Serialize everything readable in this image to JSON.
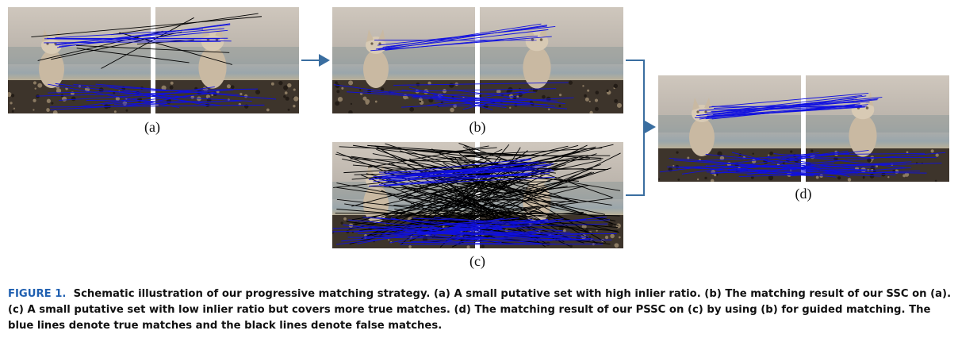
{
  "panels": [
    {
      "id": "a",
      "label": "(a)",
      "blue_lines": 26,
      "black_lines": 9,
      "black_style": "sparse"
    },
    {
      "id": "b",
      "label": "(b)",
      "blue_lines": 24,
      "black_lines": 0,
      "black_style": "none"
    },
    {
      "id": "c",
      "label": "(c)",
      "blue_lines": 60,
      "black_lines": 150,
      "black_style": "dense"
    },
    {
      "id": "d",
      "label": "(d)",
      "blue_lines": 50,
      "black_lines": 0,
      "black_style": "none"
    }
  ],
  "colors": {
    "true_match": "#1010e0",
    "false_match": "#000000",
    "arrow": "#3a6ea0",
    "figure_label": "#1f5fb0"
  },
  "caption": {
    "figure_label": "FIGURE 1.",
    "text": "Schematic illustration of our progressive matching strategy. (a) A small putative set with high inlier ratio. (b) The matching result of our SSC on (a). (c) A small putative set with low inlier ratio but covers more true matches. (d) The matching result of our PSSC on (c) by using (b) for guided matching. The blue lines denote true matches and the black lines denote false matches."
  }
}
